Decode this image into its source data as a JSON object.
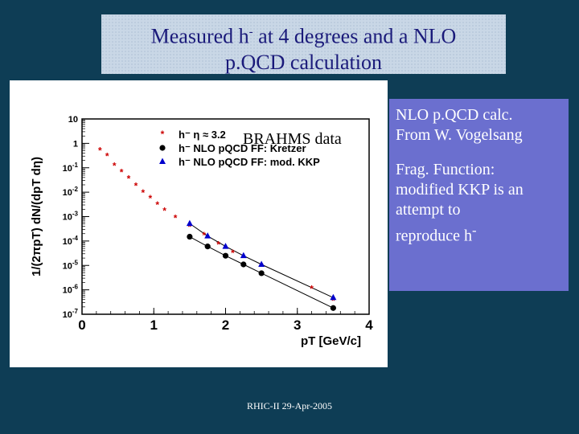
{
  "title": {
    "line1": "Measured h",
    "line1_sup": "-",
    "line1_rest": " at 4 degrees and a NLO",
    "line2": "p.QCD calculation"
  },
  "side": {
    "p1_line1": "NLO p.QCD calc.",
    "p1_line2": "From W. Vogelsang",
    "p2_lines": [
      "Frag. Function:",
      "modified KKP is an",
      "attempt to",
      "reproduce h"
    ],
    "p2_sup": "-"
  },
  "footer": "RHIC-II 29-Apr-2005",
  "overlay_label": "BRAHMS data",
  "chart_data": {
    "type": "scatter",
    "xlabel": "pT [GeV/c]",
    "ylabel": "1/(2πpT) dN/(dpT dη)",
    "xlim": [
      0,
      4
    ],
    "ylim_log10": [
      -7,
      1
    ],
    "xticks": [
      "0",
      "1",
      "2",
      "3",
      "4"
    ],
    "yticks": [
      "10",
      "1",
      "10-1",
      "10-2",
      "10-3",
      "10-4",
      "10-5",
      "10-6",
      "10-7"
    ],
    "legend": [
      {
        "label": "h⁻ η ≈ 3.2",
        "marker": "star",
        "color": "#cc0000"
      },
      {
        "label": "h⁻ NLO pQCD FF: Kretzer",
        "marker": "circle",
        "color": "#000000"
      },
      {
        "label": "h⁻ NLO pQCD FF: mod. KKP",
        "marker": "triangle",
        "color": "#0000cc"
      }
    ],
    "series": [
      {
        "name": "BRAHMS data",
        "x": [
          0.25,
          0.35,
          0.45,
          0.55,
          0.65,
          0.75,
          0.85,
          0.95,
          1.05,
          1.15,
          1.3,
          1.5,
          1.7,
          1.9,
          2.1,
          2.5,
          3.2,
          3.5
        ],
        "y": [
          0.5,
          0.3,
          0.12,
          0.065,
          0.035,
          0.018,
          0.0095,
          0.0055,
          0.003,
          0.0017,
          0.00085,
          0.00038,
          0.00017,
          7e-05,
          3.2e-05,
          9.5e-06,
          1.1e-06,
          3.5e-07
        ]
      },
      {
        "name": "NLO pQCD FF: Kretzer",
        "x": [
          1.5,
          1.75,
          2.0,
          2.25,
          2.5,
          3.5
        ],
        "y": [
          0.00015,
          6e-05,
          2.5e-05,
          1.1e-05,
          4.8e-06,
          1.8e-07
        ]
      },
      {
        "name": "NLO pQCD FF: mod. KKP",
        "x": [
          1.5,
          1.75,
          2.0,
          2.25,
          2.5,
          3.5
        ],
        "y": [
          0.00052,
          0.00016,
          6e-05,
          2.5e-05,
          1.1e-05,
          4.8e-07
        ]
      }
    ]
  }
}
